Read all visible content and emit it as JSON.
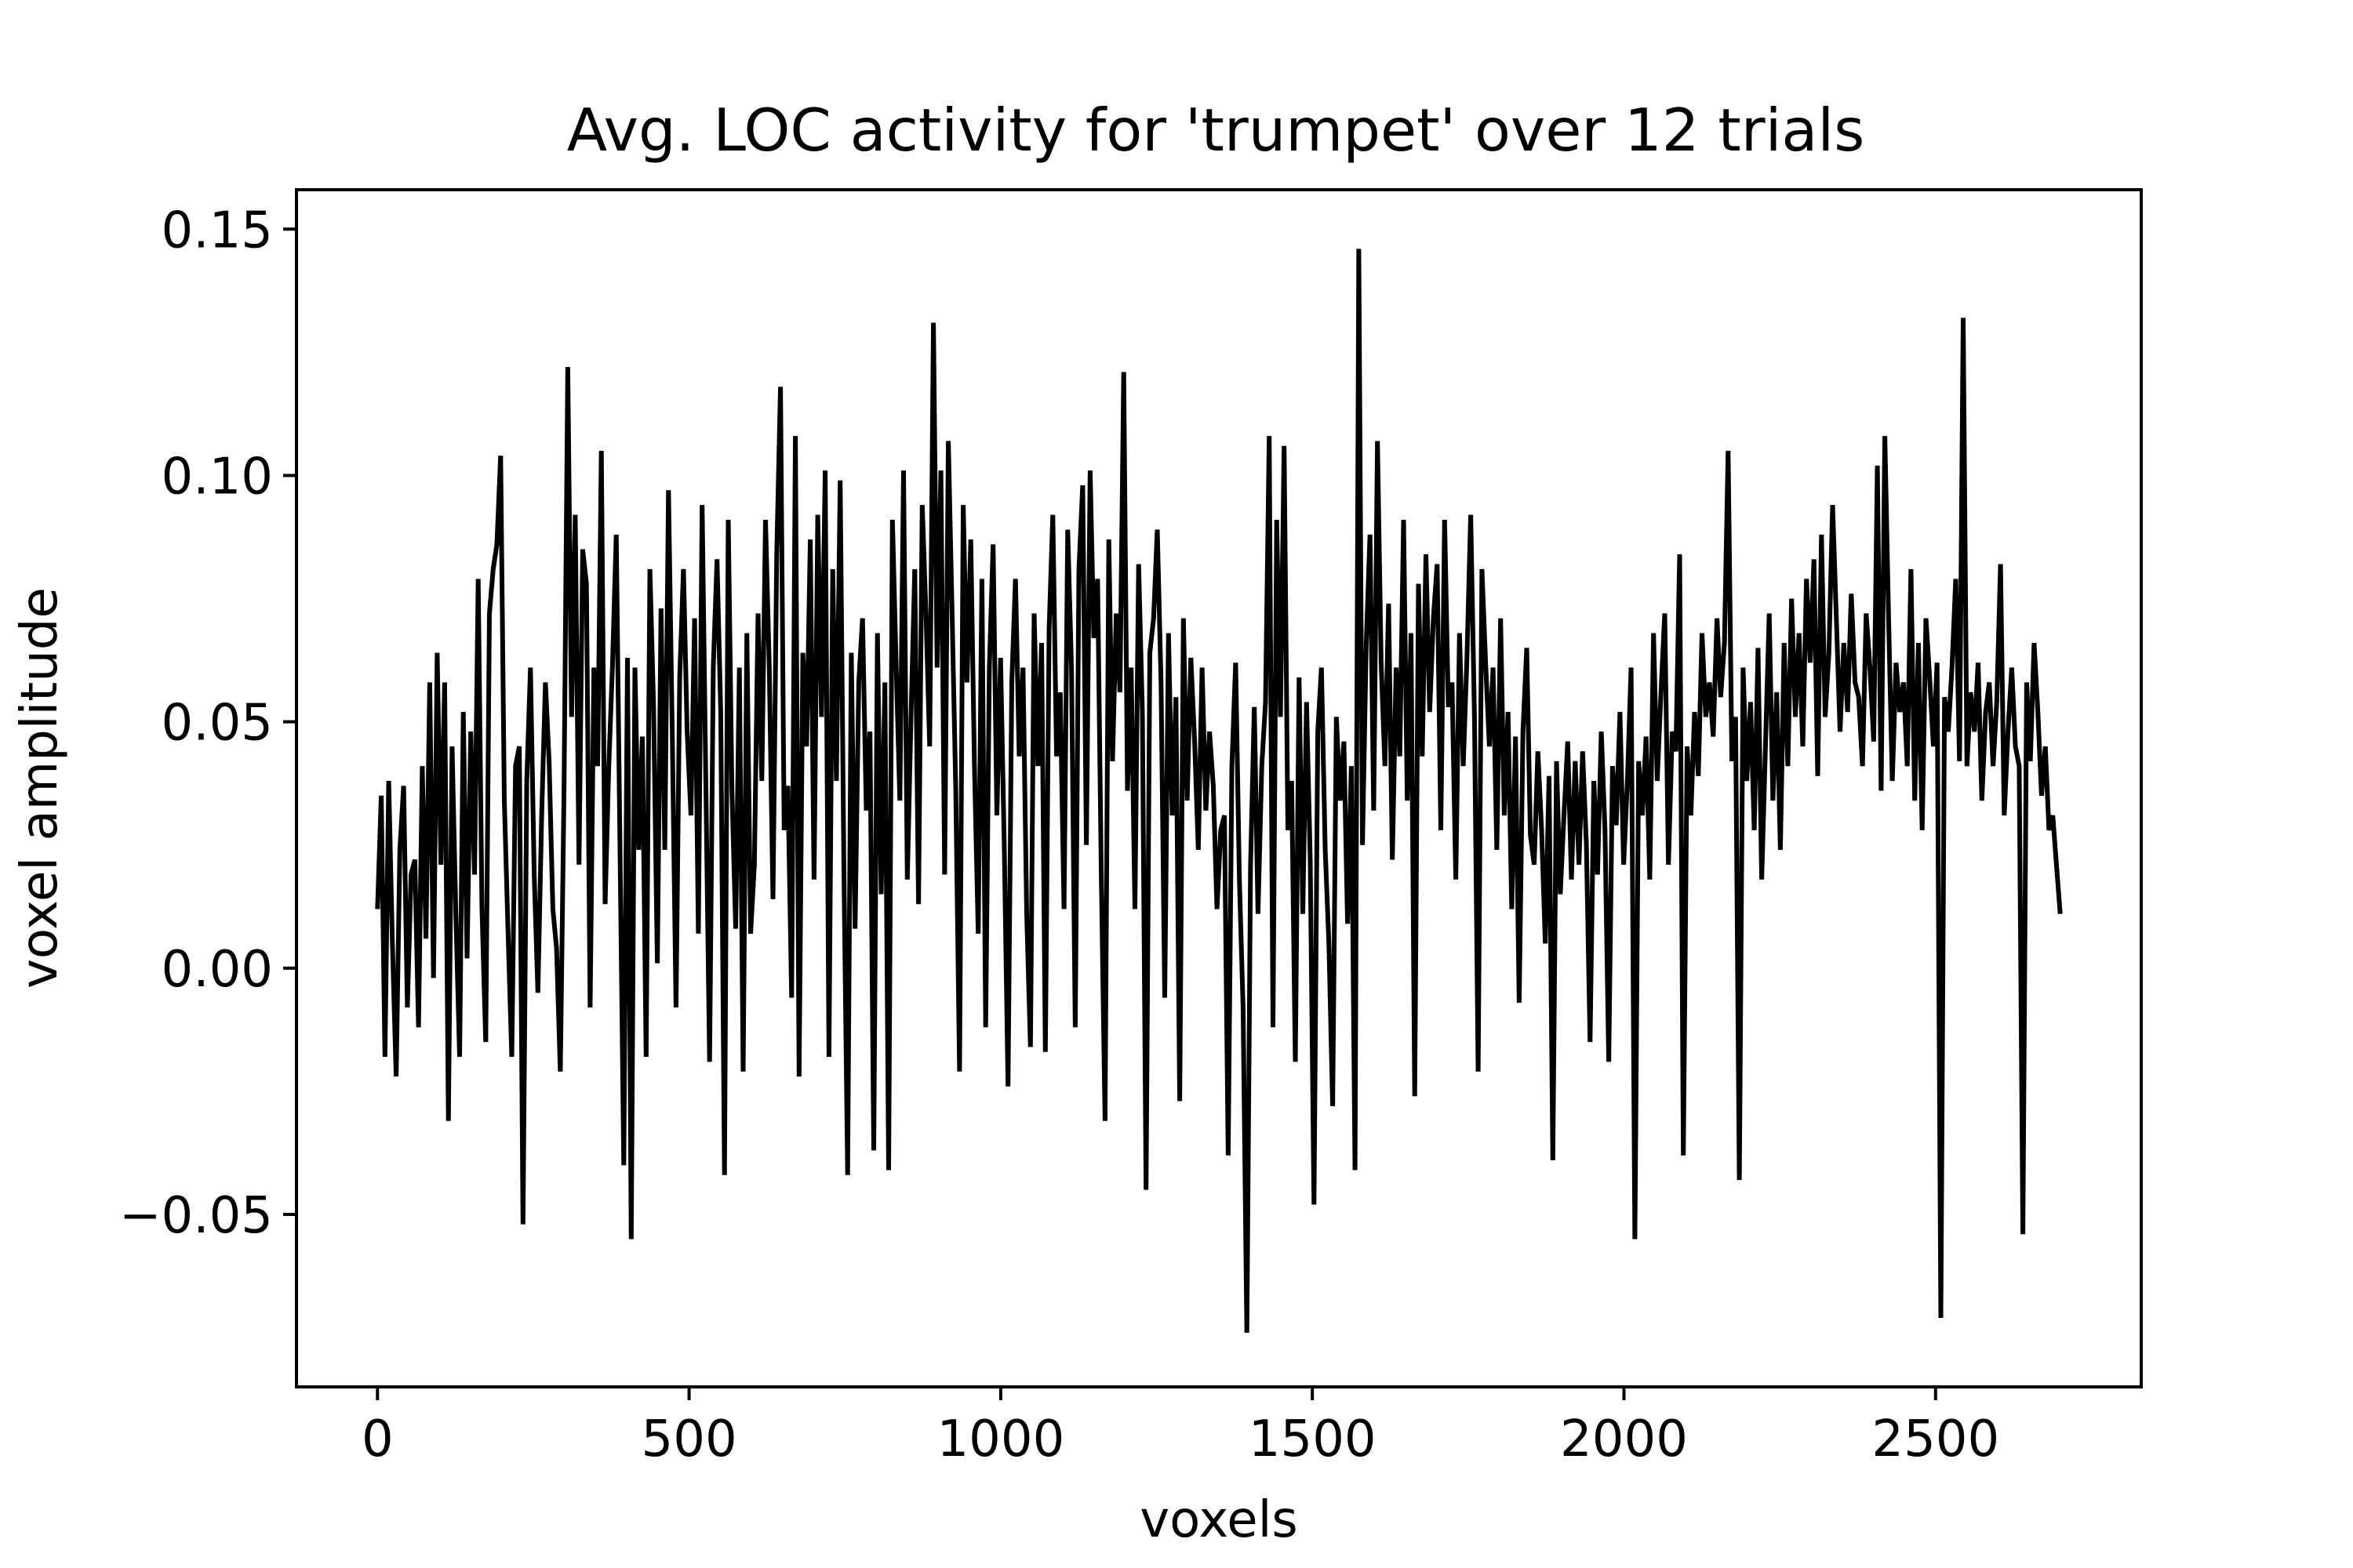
{
  "chart_data": {
    "type": "line",
    "title": "Avg. LOC activity for 'trumpet' over 12 trials",
    "xlabel": "voxels",
    "ylabel": "voxel amplitude",
    "xlim": [
      -130,
      2830
    ],
    "ylim": [
      -0.085,
      0.158
    ],
    "x_ticks": [
      0,
      500,
      1000,
      1500,
      2000,
      2500
    ],
    "x_tick_labels": [
      "0",
      "500",
      "1000",
      "1500",
      "2000",
      "2500"
    ],
    "y_ticks": [
      -0.05,
      0.0,
      0.05,
      0.1,
      0.15
    ],
    "y_tick_labels": [
      "−0.05",
      "0.00",
      "0.05",
      "0.10",
      "0.15"
    ],
    "grid": false,
    "line_color": "#000000",
    "series": [
      {
        "x_start": 0,
        "x_end": 2700,
        "sample_step": 6,
        "values": [
          0.012,
          0.035,
          -0.018,
          0.038,
          0.005,
          -0.022,
          0.024,
          0.037,
          -0.008,
          0.019,
          0.022,
          -0.012,
          0.041,
          0.006,
          0.058,
          -0.002,
          0.064,
          0.021,
          0.058,
          -0.031,
          0.045,
          0.011,
          -0.018,
          0.052,
          0.002,
          0.048,
          0.019,
          0.079,
          0.012,
          -0.015,
          0.072,
          0.081,
          0.086,
          0.104,
          0.034,
          0.007,
          -0.018,
          0.041,
          0.045,
          -0.052,
          0.038,
          0.061,
          0.019,
          -0.005,
          0.031,
          0.058,
          0.042,
          0.012,
          0.004,
          -0.021,
          0.036,
          0.122,
          0.051,
          0.092,
          0.021,
          0.085,
          0.078,
          -0.008,
          0.061,
          0.041,
          0.105,
          0.013,
          0.041,
          0.062,
          0.088,
          0.024,
          -0.04,
          0.063,
          -0.055,
          0.061,
          0.024,
          0.047,
          -0.018,
          0.081,
          0.053,
          0.001,
          0.073,
          0.024,
          0.097,
          0.048,
          -0.008,
          0.059,
          0.081,
          0.048,
          0.031,
          0.071,
          0.007,
          0.094,
          0.038,
          -0.019,
          0.061,
          0.083,
          0.052,
          -0.042,
          0.091,
          0.036,
          0.008,
          0.061,
          -0.021,
          0.068,
          0.007,
          0.021,
          0.072,
          0.038,
          0.091,
          0.061,
          0.014,
          0.084,
          0.118,
          0.028,
          0.037,
          -0.006,
          0.108,
          -0.022,
          0.064,
          0.045,
          0.087,
          0.018,
          0.092,
          0.051,
          0.101,
          -0.018,
          0.081,
          0.038,
          0.099,
          0.021,
          -0.042,
          0.064,
          0.008,
          0.058,
          0.071,
          0.032,
          0.048,
          -0.037,
          0.068,
          0.015,
          0.058,
          -0.041,
          0.091,
          0.062,
          0.034,
          0.101,
          0.018,
          0.051,
          0.081,
          0.013,
          0.094,
          0.072,
          0.045,
          0.131,
          0.061,
          0.101,
          0.019,
          0.107,
          0.072,
          0.036,
          -0.021,
          0.094,
          0.058,
          0.087,
          0.041,
          0.007,
          0.079,
          -0.012,
          0.061,
          0.086,
          0.031,
          0.063,
          0.024,
          -0.024,
          0.058,
          0.079,
          0.043,
          0.061,
          0.011,
          -0.016,
          0.072,
          0.041,
          0.066,
          -0.017,
          0.069,
          0.092,
          0.043,
          0.056,
          0.012,
          0.089,
          0.061,
          -0.012,
          0.081,
          0.098,
          0.025,
          0.101,
          0.067,
          0.079,
          0.018,
          -0.031,
          0.087,
          0.042,
          0.072,
          0.056,
          0.121,
          0.036,
          0.061,
          0.012,
          0.082,
          0.052,
          -0.045,
          0.064,
          0.071,
          0.089,
          0.058,
          -0.006,
          0.068,
          0.031,
          0.055,
          -0.027,
          0.071,
          0.034,
          0.063,
          0.046,
          0.024,
          0.061,
          0.032,
          0.048,
          0.037,
          0.012,
          0.028,
          0.031,
          -0.038,
          0.041,
          0.062,
          0.018,
          -0.008,
          -0.074,
          0.021,
          0.053,
          0.011,
          0.041,
          0.054,
          0.108,
          -0.012,
          0.091,
          0.051,
          0.106,
          0.028,
          0.038,
          -0.019,
          0.059,
          0.011,
          0.054,
          0.022,
          -0.048,
          0.048,
          0.061,
          0.024,
          0.005,
          -0.028,
          0.051,
          0.034,
          0.046,
          0.009,
          0.041,
          -0.041,
          0.146,
          0.025,
          0.066,
          0.088,
          0.032,
          0.107,
          0.062,
          0.041,
          0.074,
          0.022,
          0.061,
          0.043,
          0.091,
          0.034,
          0.068,
          -0.026,
          0.078,
          0.043,
          0.084,
          0.052,
          0.071,
          0.082,
          0.028,
          0.091,
          0.053,
          0.058,
          0.018,
          0.068,
          0.041,
          0.063,
          0.092,
          0.051,
          -0.021,
          0.081,
          0.062,
          0.045,
          0.061,
          0.024,
          0.071,
          0.031,
          0.052,
          0.012,
          0.047,
          -0.007,
          0.048,
          0.065,
          0.027,
          0.021,
          0.044,
          0.028,
          0.005,
          0.039,
          -0.039,
          0.042,
          0.015,
          0.031,
          0.046,
          0.018,
          0.042,
          0.021,
          0.044,
          0.025,
          -0.015,
          0.038,
          0.019,
          0.048,
          0.028,
          -0.019,
          0.041,
          0.029,
          0.052,
          0.021,
          0.038,
          0.061,
          -0.055,
          0.042,
          0.031,
          0.047,
          0.018,
          0.068,
          0.038,
          0.056,
          0.072,
          0.021,
          0.048,
          0.044,
          0.084,
          -0.038,
          0.045,
          0.031,
          0.052,
          0.039,
          0.068,
          0.051,
          0.058,
          0.047,
          0.071,
          0.055,
          0.066,
          0.105,
          0.042,
          0.051,
          -0.043,
          0.061,
          0.038,
          0.054,
          0.028,
          0.065,
          0.018,
          0.045,
          0.072,
          0.034,
          0.056,
          0.024,
          0.066,
          0.041,
          0.075,
          0.051,
          0.068,
          0.045,
          0.079,
          0.062,
          0.083,
          0.039,
          0.088,
          0.051,
          0.064,
          0.094,
          0.071,
          0.048,
          0.066,
          0.052,
          0.076,
          0.058,
          0.055,
          0.041,
          0.072,
          0.061,
          0.046,
          0.102,
          0.036,
          0.108,
          0.071,
          0.038,
          0.062,
          0.052,
          0.058,
          0.041,
          0.081,
          0.034,
          0.066,
          0.028,
          0.071,
          0.059,
          0.045,
          0.062,
          -0.071,
          0.055,
          0.048,
          0.061,
          0.079,
          0.042,
          0.132,
          0.041,
          0.056,
          0.048,
          0.062,
          0.034,
          0.052,
          0.058,
          0.041,
          0.054,
          0.082,
          0.031,
          0.048,
          0.061,
          0.045,
          0.041,
          -0.054,
          0.058,
          0.042,
          0.066,
          0.052,
          0.035,
          0.045,
          0.028,
          0.031,
          0.021,
          0.011
        ]
      }
    ]
  }
}
